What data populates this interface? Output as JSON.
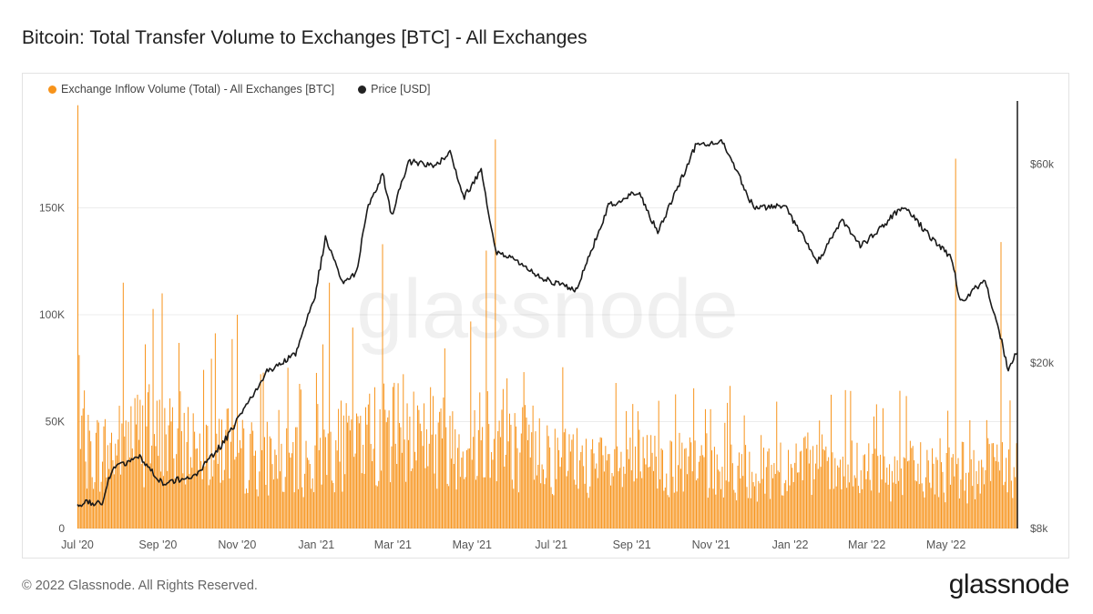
{
  "title": "Bitcoin: Total Transfer Volume to Exchanges [BTC] - All Exchanges",
  "footer": "© 2022 Glassnode. All Rights Reserved.",
  "logo": "glassnode",
  "watermark": "glassnode",
  "colors": {
    "bars": "#f7931a",
    "price": "#1a1a1a",
    "grid": "#ececec",
    "axis_text": "#555555"
  },
  "chart_data": {
    "type": "bar",
    "series": [
      {
        "name": "Exchange Inflow Volume (Total) - All Exchanges [BTC]",
        "kind": "bar",
        "axis": "left",
        "color": "#f7931a",
        "monthly_typical": [
          45000,
          55000,
          52000,
          50000,
          42000,
          38000,
          48000,
          55000,
          58000,
          52000,
          60000,
          48000,
          40000,
          35000,
          38000,
          36000,
          34000,
          35000,
          36000,
          33000,
          33000,
          34000,
          33000,
          34000,
          48000,
          42000
        ],
        "spikes": [
          {
            "date": "2020-07-01",
            "value": 198000
          },
          {
            "date": "2020-08-05",
            "value": 115000
          },
          {
            "date": "2020-09-04",
            "value": 110000
          },
          {
            "date": "2020-11-01",
            "value": 100000
          },
          {
            "date": "2021-01-11",
            "value": 115000
          },
          {
            "date": "2021-02-21",
            "value": 133000
          },
          {
            "date": "2021-05-19",
            "value": 182000
          },
          {
            "date": "2021-05-12",
            "value": 130000
          },
          {
            "date": "2022-05-09",
            "value": 173000
          },
          {
            "date": "2022-06-13",
            "value": 134000
          }
        ]
      },
      {
        "name": "Price [USD]",
        "kind": "line",
        "axis": "right",
        "color": "#1a1a1a",
        "points": [
          [
            "2020-07-01",
            9200
          ],
          [
            "2020-07-20",
            9200
          ],
          [
            "2020-07-27",
            11000
          ],
          [
            "2020-08-17",
            12000
          ],
          [
            "2020-09-05",
            10200
          ],
          [
            "2020-10-01",
            10800
          ],
          [
            "2020-10-21",
            12800
          ],
          [
            "2020-11-07",
            15500
          ],
          [
            "2020-11-24",
            19000
          ],
          [
            "2020-12-16",
            21000
          ],
          [
            "2020-12-31",
            29000
          ],
          [
            "2021-01-08",
            40000
          ],
          [
            "2021-01-22",
            31000
          ],
          [
            "2021-02-01",
            33000
          ],
          [
            "2021-02-09",
            46500
          ],
          [
            "2021-02-21",
            57000
          ],
          [
            "2021-02-28",
            45000
          ],
          [
            "2021-03-13",
            61000
          ],
          [
            "2021-04-01",
            59000
          ],
          [
            "2021-04-14",
            63500
          ],
          [
            "2021-04-25",
            50000
          ],
          [
            "2021-05-08",
            58000
          ],
          [
            "2021-05-19",
            37000
          ],
          [
            "2021-06-01",
            36000
          ],
          [
            "2021-06-22",
            32000
          ],
          [
            "2021-07-20",
            29800
          ],
          [
            "2021-08-14",
            47500
          ],
          [
            "2021-09-06",
            51500
          ],
          [
            "2021-09-21",
            41000
          ],
          [
            "2021-10-20",
            66000
          ],
          [
            "2021-11-10",
            68000
          ],
          [
            "2021-12-04",
            47000
          ],
          [
            "2021-12-28",
            47500
          ],
          [
            "2022-01-22",
            35000
          ],
          [
            "2022-02-10",
            44000
          ],
          [
            "2022-02-24",
            38000
          ],
          [
            "2022-03-29",
            47500
          ],
          [
            "2022-04-26",
            38000
          ],
          [
            "2022-05-05",
            36000
          ],
          [
            "2022-05-12",
            28000
          ],
          [
            "2022-05-31",
            31700
          ],
          [
            "2022-06-13",
            22500
          ],
          [
            "2022-06-18",
            19000
          ],
          [
            "2022-06-22",
            20500
          ],
          [
            "2022-06-25",
            21100
          ]
        ]
      }
    ],
    "left_axis": {
      "ticks": [
        "0",
        "50K",
        "100K",
        "150K"
      ],
      "tick_values": [
        0,
        50000,
        100000,
        150000
      ],
      "range": [
        0,
        200000
      ]
    },
    "right_axis": {
      "ticks": [
        "$8k",
        "$20k",
        "$60k"
      ],
      "tick_values": [
        8000,
        20000,
        60000
      ],
      "scale": "log",
      "range": [
        8000,
        85000
      ]
    },
    "x_axis": {
      "range": [
        "2020-07-01",
        "2022-06-25"
      ],
      "ticks": [
        {
          "label": "Jul '20",
          "date": "2020-07-01"
        },
        {
          "label": "Sep '20",
          "date": "2020-09-01"
        },
        {
          "label": "Nov '20",
          "date": "2020-11-01"
        },
        {
          "label": "Jan '21",
          "date": "2021-01-01"
        },
        {
          "label": "Mar '21",
          "date": "2021-03-01"
        },
        {
          "label": "May '21",
          "date": "2021-05-01"
        },
        {
          "label": "Jul '21",
          "date": "2021-07-01"
        },
        {
          "label": "Sep '21",
          "date": "2021-09-01"
        },
        {
          "label": "Nov '21",
          "date": "2021-11-01"
        },
        {
          "label": "Jan '22",
          "date": "2022-01-01"
        },
        {
          "label": "Mar '22",
          "date": "2022-03-01"
        },
        {
          "label": "May '22",
          "date": "2022-05-01"
        }
      ]
    },
    "grid": true,
    "legend_position": "top-left"
  }
}
